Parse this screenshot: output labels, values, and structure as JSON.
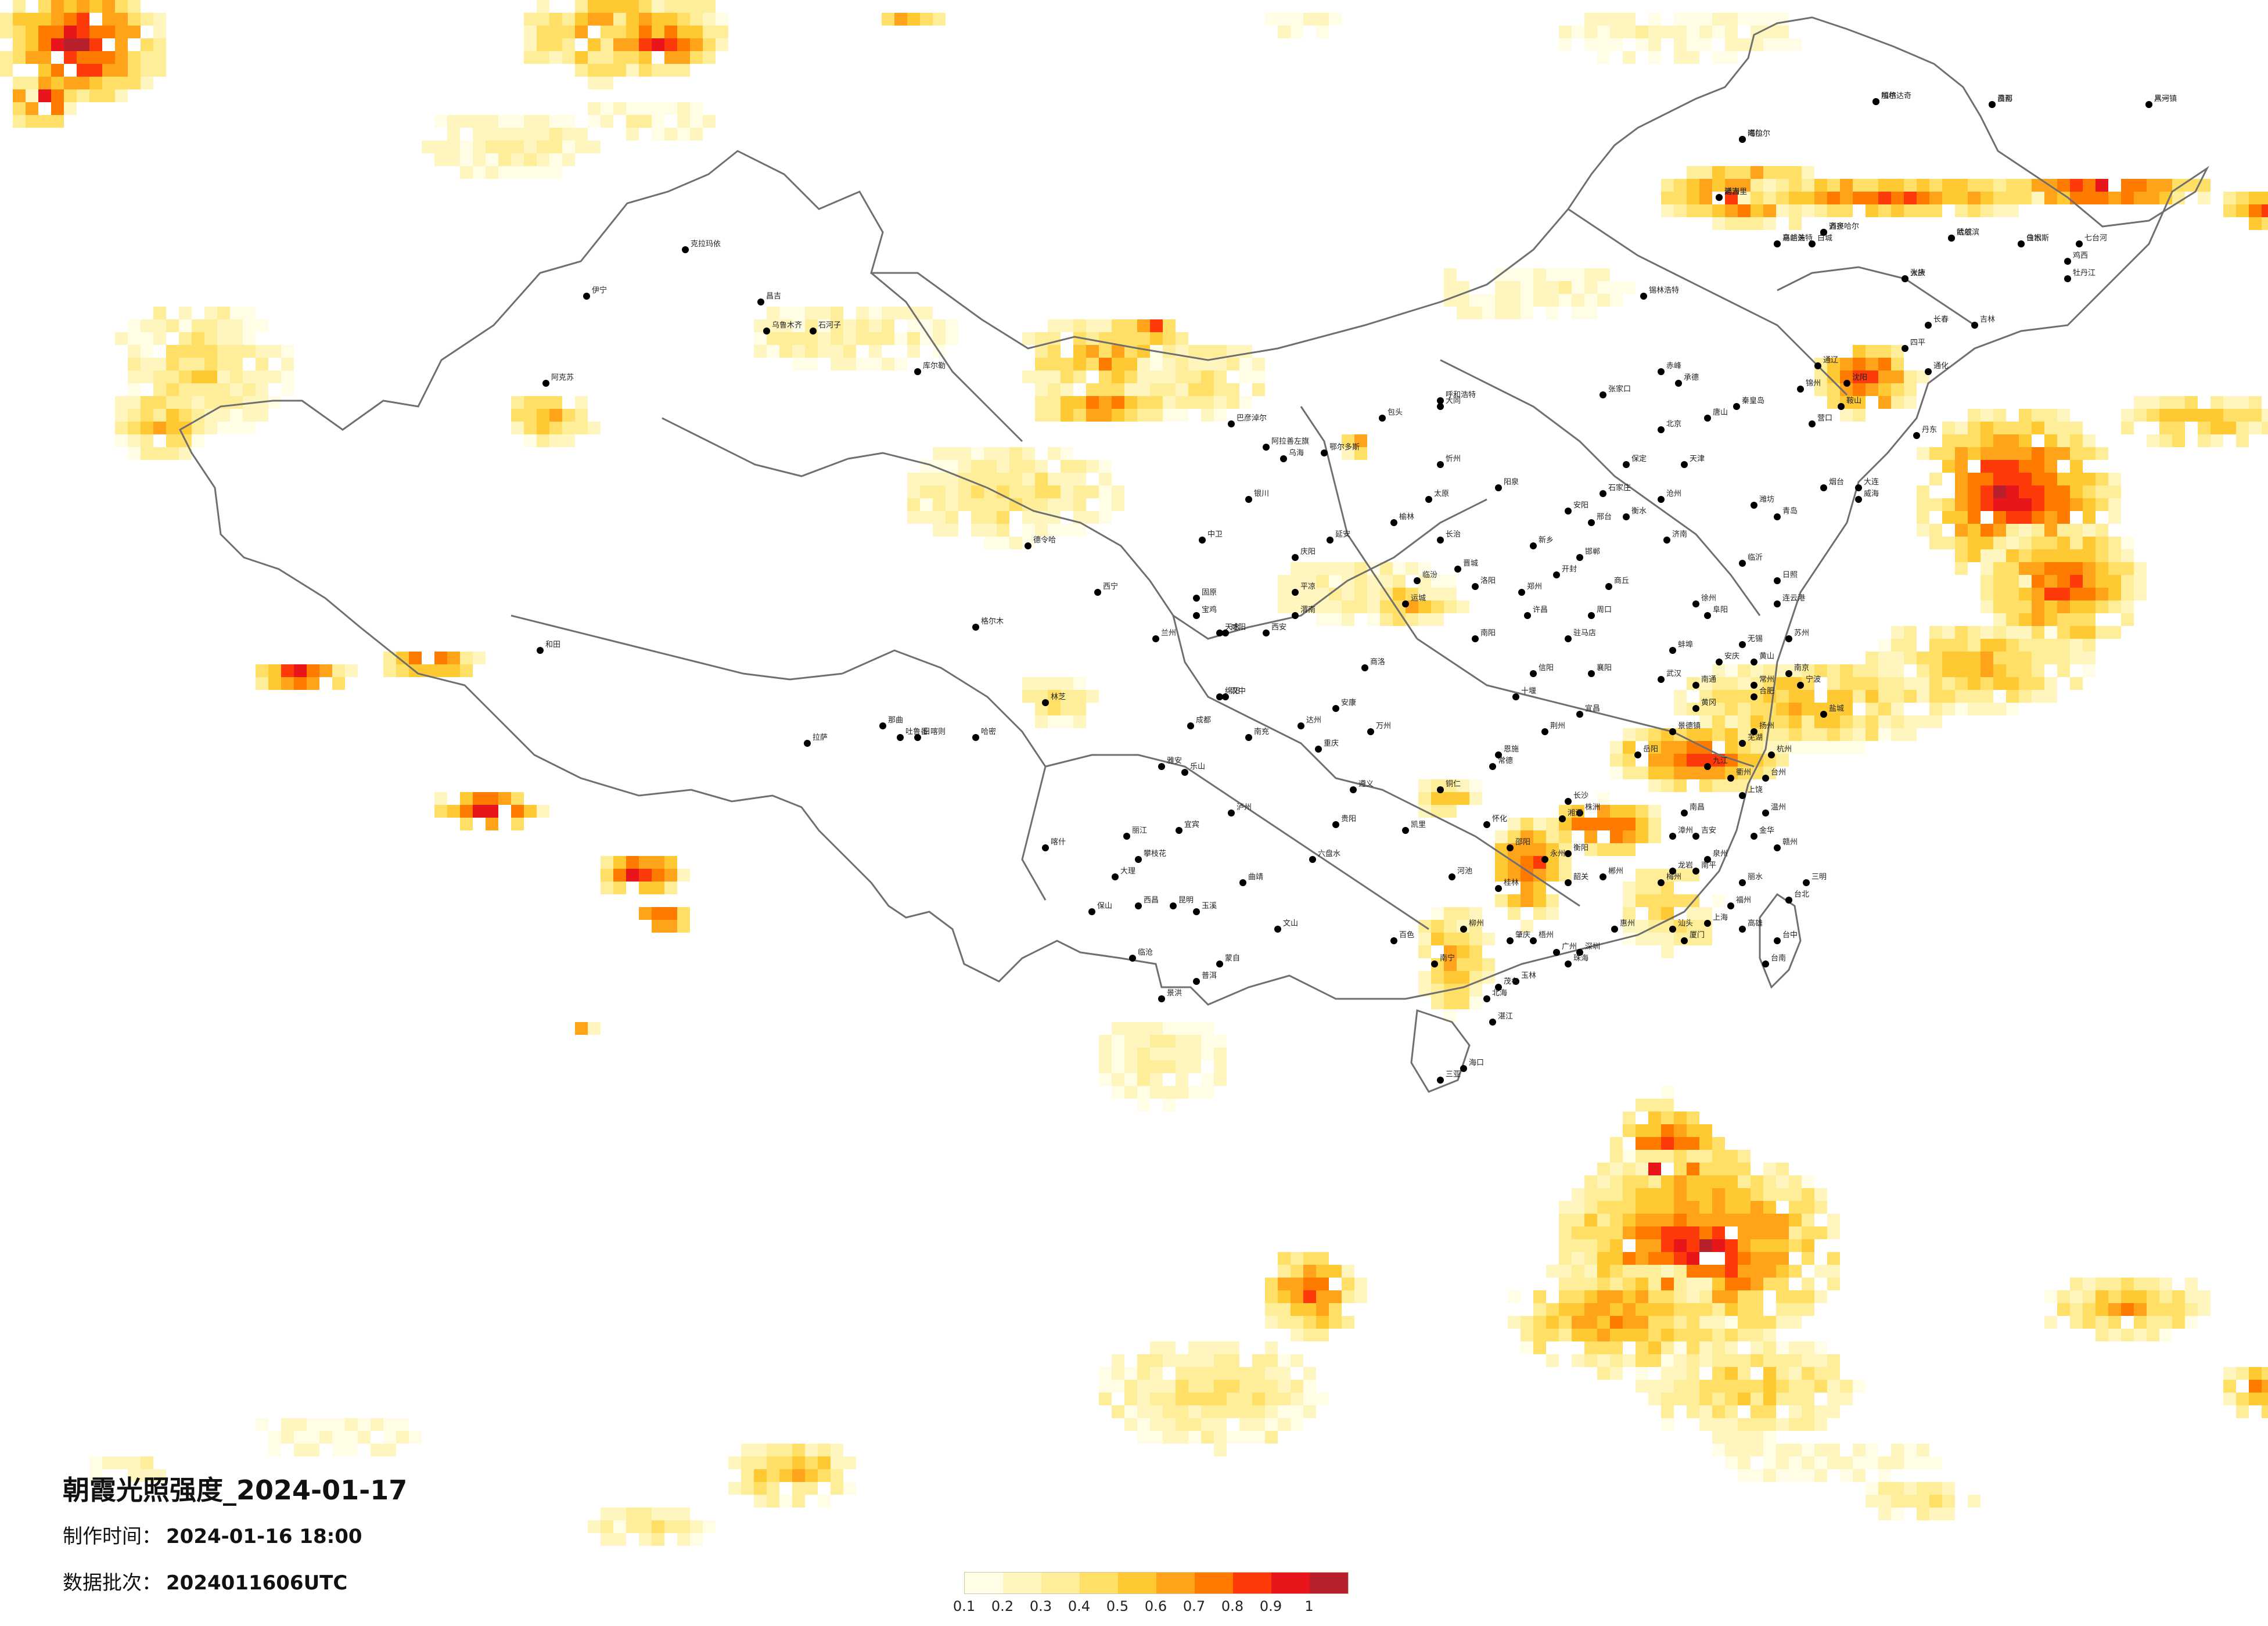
{
  "title": "朝霞光照强度_2024-01-17",
  "meta": {
    "made_label": "制作时间：",
    "made_value": "2024-01-16 18:00",
    "batch_label": "数据批次：",
    "batch_value": "2024011606UTC"
  },
  "legend": {
    "ticks": [
      "0.1",
      "0.2",
      "0.3",
      "0.4",
      "0.5",
      "0.6",
      "0.7",
      "0.8",
      "0.9",
      "1"
    ],
    "colors": [
      "#fffde6",
      "#fff6bf",
      "#ffee99",
      "#ffdf66",
      "#ffc933",
      "#ffa31a",
      "#ff7b00",
      "#ff3a0a",
      "#e8161b",
      "#b8202b"
    ]
  },
  "colors": {
    "border": "#6f6f6f",
    "city_dot": "#000000"
  },
  "cities": [
    "漠河",
    "加格达奇",
    "海拉尔",
    "黑河",
    "满洲里",
    "乌兰浩特",
    "齐齐哈尔",
    "大庆",
    "哈尔滨",
    "佳木斯",
    "七台河",
    "鸡西",
    "牡丹江",
    "长春",
    "吉林",
    "通化",
    "四平",
    "白城",
    "锡林浩特",
    "赤峰",
    "通辽",
    "沈阳",
    "鞍山",
    "丹东",
    "大连",
    "锦州",
    "营口",
    "秦皇岛",
    "唐山",
    "承德",
    "张家口",
    "北京",
    "天津",
    "保定",
    "石家庄",
    "邢台",
    "邯郸",
    "衡水",
    "沧州",
    "济南",
    "青岛",
    "烟台",
    "威海",
    "潍坊",
    "临沂",
    "日照",
    "连云港",
    "徐州",
    "郑州",
    "开封",
    "洛阳",
    "新乡",
    "安阳",
    "许昌",
    "南阳",
    "信阳",
    "驻马店",
    "商丘",
    "周口",
    "太原",
    "大同",
    "忻州",
    "阳泉",
    "长治",
    "晋城",
    "临汾",
    "运城",
    "呼和浩特",
    "包头",
    "鄂尔多斯",
    "乌海",
    "巴彦淖尔",
    "阿拉善左旗",
    "银川",
    "中卫",
    "固原",
    "兰州",
    "天水",
    "平凉",
    "庆阳",
    "西宁",
    "格尔木",
    "德令哈",
    "西安",
    "宝鸡",
    "咸阳",
    "渭南",
    "延安",
    "榆林",
    "汉中",
    "安康",
    "商洛",
    "成都",
    "绵阳",
    "乐山",
    "宜宾",
    "泸州",
    "南充",
    "达州",
    "雅安",
    "西昌",
    "攀枝花",
    "重庆",
    "万州",
    "贵阳",
    "遵义",
    "六盘水",
    "凯里",
    "铜仁",
    "昆明",
    "大理",
    "丽江",
    "保山",
    "曲靖",
    "玉溪",
    "蒙自",
    "文山",
    "景洪",
    "临沧",
    "普洱",
    "南宁",
    "桂林",
    "柳州",
    "梧州",
    "北海",
    "百色",
    "河池",
    "玉林",
    "广州",
    "深圳",
    "珠海",
    "汕头",
    "湛江",
    "茂名",
    "韶关",
    "梅州",
    "惠州",
    "肇庆",
    "海口",
    "三亚",
    "长沙",
    "株洲",
    "湘潭",
    "衡阳",
    "岳阳",
    "常德",
    "怀化",
    "邵阳",
    "永州",
    "郴州",
    "武汉",
    "宜昌",
    "襄阳",
    "荆州",
    "十堰",
    "黄冈",
    "恩施",
    "南昌",
    "九江",
    "赣州",
    "吉安",
    "上饶",
    "景德镇",
    "合肥",
    "芜湖",
    "安庆",
    "蚌埠",
    "阜阳",
    "黄山",
    "南京",
    "苏州",
    "无锡",
    "常州",
    "南通",
    "扬州",
    "盐城",
    "杭州",
    "宁波",
    "温州",
    "金华",
    "台州",
    "衢州",
    "丽水",
    "上海",
    "福州",
    "厦门",
    "泉州",
    "漳州",
    "南平",
    "三明",
    "龙岩",
    "台北",
    "台中",
    "台南",
    "高雄",
    "乌鲁木齐",
    "克拉玛依",
    "伊宁",
    "昌吉",
    "石河子",
    "库尔勒",
    "阿克苏",
    "喀什",
    "和田",
    "哈密",
    "吐鲁番",
    "拉萨",
    "日喀则",
    "那曲",
    "林芝",
    "昌都",
    "嘎尔",
    "噶尔",
    "八一镇",
    "延吉",
    "嘉峪关",
    "酒泉",
    "张掖",
    "武威",
    "白银"
  ]
}
